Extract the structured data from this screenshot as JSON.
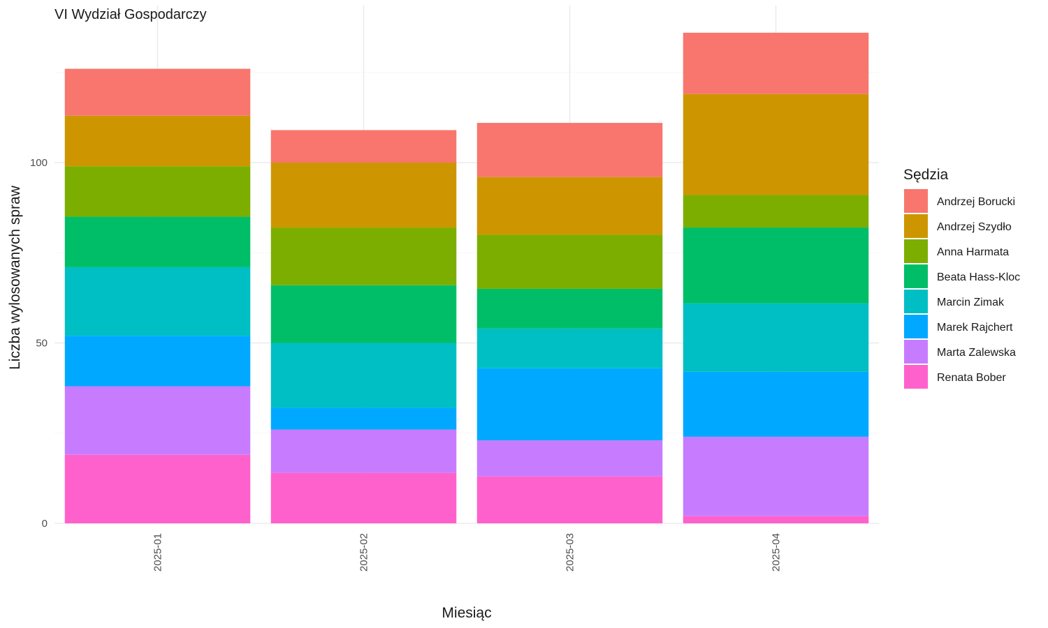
{
  "chart_data": {
    "type": "bar",
    "stacked": true,
    "title": "VI Wydział Gospodarczy",
    "xlabel": "Miesiąc",
    "ylabel": "Liczba wylosowanych spraw",
    "ylim": [
      0,
      140
    ],
    "yticks": [
      0,
      50,
      100
    ],
    "grid": true,
    "legend": {
      "title": "Sędzia",
      "placement": "right"
    },
    "categories": [
      "2025-01",
      "2025-02",
      "2025-03",
      "2025-04"
    ],
    "series": [
      {
        "name": "Renata Bober",
        "color": "#FF61CC",
        "values": [
          19,
          14,
          13,
          2
        ]
      },
      {
        "name": "Marta Zalewska",
        "color": "#C77CFF",
        "values": [
          19,
          12,
          10,
          22
        ]
      },
      {
        "name": "Marek Rajchert",
        "color": "#00A9FF",
        "values": [
          14,
          6,
          20,
          18
        ]
      },
      {
        "name": "Marcin Zimak",
        "color": "#00BFC4",
        "values": [
          19,
          18,
          11,
          19
        ]
      },
      {
        "name": "Beata Hass-Kloc",
        "color": "#00BE67",
        "values": [
          14,
          16,
          11,
          21
        ]
      },
      {
        "name": "Anna Harmata",
        "color": "#7CAE00",
        "values": [
          14,
          16,
          15,
          9
        ]
      },
      {
        "name": "Andrzej Szydło",
        "color": "#CD9600",
        "values": [
          14,
          18,
          16,
          28
        ]
      },
      {
        "name": "Andrzej Borucki",
        "color": "#F8766D",
        "values": [
          13,
          9,
          15,
          17
        ]
      }
    ],
    "legend_order": [
      "Andrzej Borucki",
      "Andrzej Szydło",
      "Anna Harmata",
      "Beata Hass-Kloc",
      "Marcin Zimak",
      "Marek Rajchert",
      "Marta Zalewska",
      "Renata Bober"
    ]
  }
}
